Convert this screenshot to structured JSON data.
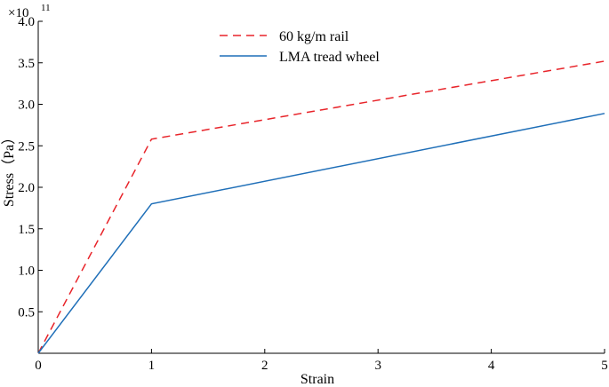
{
  "chart_data": {
    "type": "line",
    "xlabel": "Strain",
    "ylabel": "Stress（Pa）",
    "y_multiplier_label": "×10",
    "y_multiplier_exponent": "11",
    "xlim": [
      0,
      5
    ],
    "ylim": [
      0,
      4.0
    ],
    "x_ticks": [
      "0",
      "1",
      "2",
      "3",
      "4",
      "5"
    ],
    "y_ticks": [
      "0.5",
      "1.0",
      "1.5",
      "2.0",
      "2.5",
      "3.0",
      "3.5",
      "4.0"
    ],
    "grid": false,
    "legend_position": "top-center",
    "series": [
      {
        "name": "60 kg/m rail",
        "color": "#e8242a",
        "style": "dashed",
        "x": [
          0,
          1,
          5
        ],
        "y": [
          0,
          2.58,
          3.52
        ]
      },
      {
        "name": "LMA tread wheel",
        "color": "#1f6fb8",
        "style": "solid",
        "x": [
          0,
          1,
          5
        ],
        "y": [
          0,
          1.8,
          2.89
        ]
      }
    ]
  }
}
